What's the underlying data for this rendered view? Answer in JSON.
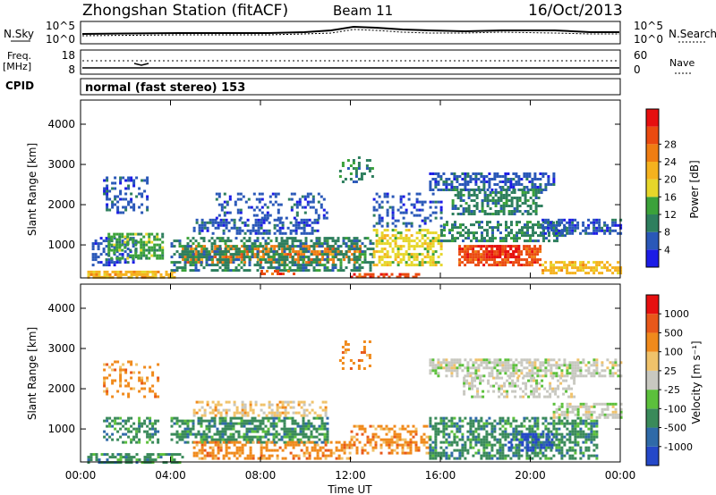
{
  "header": {
    "station": "Zhongshan Station (fitACF)",
    "beam": "Beam 11",
    "date": "16/Oct/2013"
  },
  "panels": {
    "nsky_label": "N.Sky",
    "nsearch_label": "N.Search",
    "noise_ticks_left": [
      "10^5",
      "10^0"
    ],
    "noise_ticks_right": [
      "10^5",
      "10^0"
    ],
    "freq_label_1": "Freq.",
    "freq_label_2": "[MHz]",
    "freq_ticks": [
      "18",
      "8"
    ],
    "nave_ticks": [
      "60",
      "0"
    ],
    "nave_label": "Nave",
    "cpid_label": "CPID",
    "cpid_text": "normal (fast stereo) 153"
  },
  "chart_data": [
    {
      "type": "heatmap",
      "name": "power",
      "xlabel": "Time UT",
      "ylabel": "Slant Range [km]",
      "xticks": [
        "00:00",
        "04:00",
        "08:00",
        "12:00",
        "16:00",
        "20:00",
        "00:00"
      ],
      "xlim": [
        0,
        24
      ],
      "yticks": [
        "1000",
        "2000",
        "3000",
        "4000"
      ],
      "ylim": [
        180,
        4600
      ],
      "colorbar": {
        "label": "Power [dB]",
        "ticks": [
          "4",
          "8",
          "12",
          "16",
          "20",
          "24",
          "28"
        ],
        "colors": [
          "#1c1ce6",
          "#2a58b8",
          "#2e7f5e",
          "#3ba23a",
          "#e6d62a",
          "#f5b21e",
          "#ef7d12",
          "#ea4a10",
          "#e60f0f"
        ]
      },
      "regions": [
        {
          "t0": 0.3,
          "t1": 4.2,
          "r0": 200,
          "r1": 360,
          "c": 5,
          "d": 0.75
        },
        {
          "t0": 0.5,
          "t1": 2.5,
          "r0": 500,
          "r1": 1200,
          "c": 1,
          "d": 0.5
        },
        {
          "t0": 1.2,
          "t1": 3.6,
          "r0": 700,
          "r1": 1300,
          "c": 3,
          "d": 0.55
        },
        {
          "t0": 1.0,
          "t1": 3.0,
          "r0": 1800,
          "r1": 2700,
          "c": 1,
          "d": 0.3
        },
        {
          "t0": 4.5,
          "t1": 12.5,
          "r0": 600,
          "r1": 1000,
          "c": 6,
          "d": 0.65
        },
        {
          "t0": 4.0,
          "t1": 13.0,
          "r0": 400,
          "r1": 1200,
          "c": 2,
          "d": 0.55
        },
        {
          "t0": 5.0,
          "t1": 10.5,
          "r0": 1300,
          "r1": 1650,
          "c": 1,
          "d": 0.55
        },
        {
          "t0": 6.0,
          "t1": 11.0,
          "r0": 1700,
          "r1": 2300,
          "c": 1,
          "d": 0.3
        },
        {
          "t0": 8.0,
          "t1": 9.5,
          "r0": 250,
          "r1": 380,
          "c": 7,
          "d": 0.7
        },
        {
          "t0": 11.5,
          "t1": 13.0,
          "r0": 2600,
          "r1": 3200,
          "c": 2,
          "d": 0.3
        },
        {
          "t0": 13.0,
          "t1": 16.0,
          "r0": 500,
          "r1": 1400,
          "c": 4,
          "d": 0.55
        },
        {
          "t0": 13.0,
          "t1": 16.0,
          "r0": 1500,
          "r1": 2300,
          "c": 1,
          "d": 0.35
        },
        {
          "t0": 15.5,
          "t1": 21.0,
          "r0": 2400,
          "r1": 2800,
          "c": 1,
          "d": 0.6
        },
        {
          "t0": 16.5,
          "t1": 20.5,
          "r0": 1800,
          "r1": 2400,
          "c": 2,
          "d": 0.55
        },
        {
          "t0": 16.0,
          "t1": 21.5,
          "r0": 1100,
          "r1": 1600,
          "c": 2,
          "d": 0.55
        },
        {
          "t0": 16.8,
          "t1": 20.5,
          "r0": 500,
          "r1": 1000,
          "c": 7,
          "d": 0.75
        },
        {
          "t0": 18.0,
          "t1": 19.5,
          "r0": 700,
          "r1": 1000,
          "c": 8,
          "d": 0.6
        },
        {
          "t0": 20.5,
          "t1": 24.0,
          "r0": 1300,
          "r1": 1650,
          "c": 1,
          "d": 0.6
        },
        {
          "t0": 20.5,
          "t1": 24.0,
          "r0": 300,
          "r1": 600,
          "c": 5,
          "d": 0.6
        },
        {
          "t0": 12.0,
          "t1": 15.0,
          "r0": 200,
          "r1": 300,
          "c": 7,
          "d": 0.6
        }
      ]
    },
    {
      "type": "heatmap",
      "name": "velocity",
      "xlabel": "Time UT",
      "ylabel": "Slant Range [km]",
      "xticks": [
        "00:00",
        "04:00",
        "08:00",
        "12:00",
        "16:00",
        "20:00",
        "00:00"
      ],
      "xlim": [
        0,
        24
      ],
      "yticks": [
        "1000",
        "2000",
        "3000",
        "4000"
      ],
      "ylim": [
        180,
        4600
      ],
      "colorbar": {
        "label": "Velocity [m s⁻¹]",
        "ticks": [
          "1000",
          "500",
          "100",
          "25",
          "-25",
          "-100",
          "-500",
          "-1000"
        ],
        "colors": [
          "#2548c8",
          "#2f6aa8",
          "#3a8a5a",
          "#5cc03c",
          "#c8c8c0",
          "#f0c26a",
          "#f08a1c",
          "#e8581a",
          "#e61010"
        ]
      },
      "regions": [
        {
          "t0": 0.3,
          "t1": 4.5,
          "r0": 200,
          "r1": 400,
          "c": 2,
          "d": 0.6
        },
        {
          "t0": 1.0,
          "t1": 3.5,
          "r0": 700,
          "r1": 1300,
          "c": 2,
          "d": 0.45
        },
        {
          "t0": 1.0,
          "t1": 3.5,
          "r0": 1800,
          "r1": 2700,
          "c": 6,
          "d": 0.25
        },
        {
          "t0": 4.0,
          "t1": 11.0,
          "r0": 700,
          "r1": 1300,
          "c": 2,
          "d": 0.6
        },
        {
          "t0": 5.0,
          "t1": 12.0,
          "r0": 300,
          "r1": 700,
          "c": 6,
          "d": 0.55
        },
        {
          "t0": 5.0,
          "t1": 11.0,
          "r0": 1350,
          "r1": 1700,
          "c": 5,
          "d": 0.4
        },
        {
          "t0": 12.0,
          "t1": 15.5,
          "r0": 400,
          "r1": 1100,
          "c": 6,
          "d": 0.5
        },
        {
          "t0": 11.5,
          "t1": 13.0,
          "r0": 2500,
          "r1": 3200,
          "c": 6,
          "d": 0.25
        },
        {
          "t0": 15.5,
          "t1": 24.0,
          "r0": 2300,
          "r1": 2750,
          "c": 4,
          "d": 0.6
        },
        {
          "t0": 17.0,
          "t1": 22.0,
          "r0": 1800,
          "r1": 2300,
          "c": 4,
          "d": 0.45
        },
        {
          "t0": 15.5,
          "t1": 23.0,
          "r0": 300,
          "r1": 1300,
          "c": 2,
          "d": 0.6
        },
        {
          "t0": 19.0,
          "t1": 21.0,
          "r0": 500,
          "r1": 900,
          "c": 0,
          "d": 0.5
        },
        {
          "t0": 21.0,
          "t1": 24.0,
          "r0": 1300,
          "r1": 1650,
          "c": 4,
          "d": 0.6
        }
      ]
    }
  ]
}
